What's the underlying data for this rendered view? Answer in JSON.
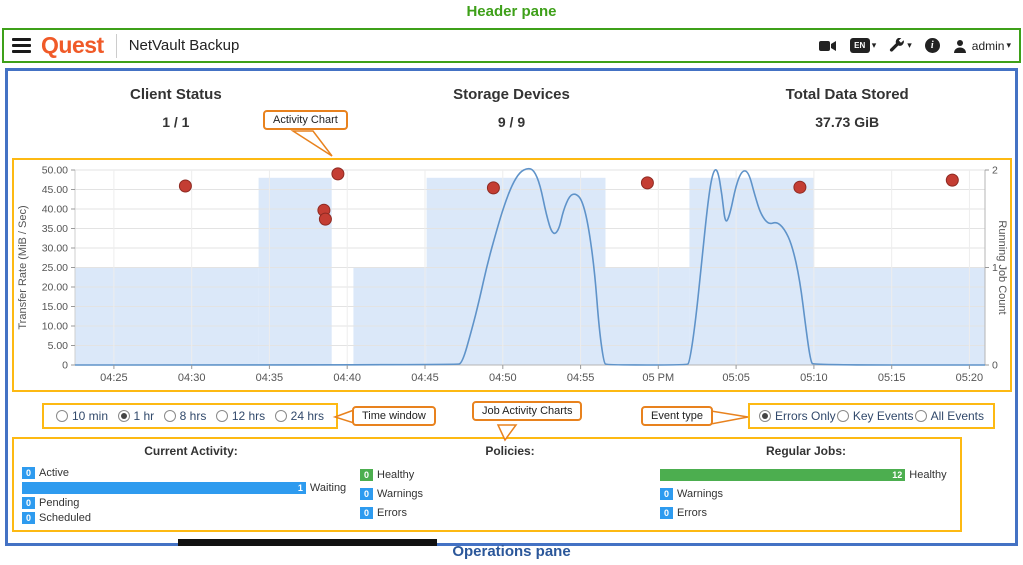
{
  "annotations": {
    "header_pane_label": "Header pane",
    "operations_pane_label": "Operations pane",
    "callout_activity_chart": "Activity Chart",
    "callout_time_window": "Time window",
    "callout_job_activity_charts": "Job Activity Charts",
    "callout_event_type": "Event type"
  },
  "header": {
    "brand": "Quest",
    "app_title": "NetVault Backup",
    "language_badge": "EN",
    "user_name": "admin"
  },
  "icons": {
    "menu": "hamburger",
    "video": "camera-shape",
    "language": "EN-badge",
    "tools": "wrench-shape",
    "info_glyph": "i",
    "user": "person-shape",
    "caret": "▾"
  },
  "summary_tiles": [
    {
      "label": "Client Status",
      "value": "1 / 1"
    },
    {
      "label": "Storage Devices",
      "value": "9 / 9"
    },
    {
      "label": "Total Data Stored",
      "value": "37.73 GiB"
    }
  ],
  "time_window": {
    "options": [
      "10 min",
      "1 hr",
      "8 hrs",
      "12 hrs",
      "24 hrs"
    ],
    "selected": "1 hr"
  },
  "event_type": {
    "options": [
      "Errors Only",
      "Key Events",
      "All Events"
    ],
    "selected": "Errors Only"
  },
  "chart_data": {
    "type": "line",
    "description": "Activity chart: running job count line (right axis), error event dots (left axis), shaded transfer-rate bands (left axis)",
    "x_axis": {
      "tick_labels": [
        "04:25",
        "04:30",
        "04:35",
        "04:40",
        "04:45",
        "04:50",
        "04:55",
        "05 PM",
        "05:05",
        "05:10",
        "05:15",
        "05:20"
      ],
      "tick_minutes": [
        25,
        30,
        35,
        40,
        45,
        50,
        55,
        60,
        65,
        70,
        75,
        80
      ],
      "domain_minutes": [
        22.5,
        81
      ]
    },
    "y_left": {
      "label": "Transfer Rate (MiB / Sec)",
      "tick_labels": [
        "50.00",
        "45.00",
        "40.00",
        "35.00",
        "30.00",
        "25.00",
        "20.00",
        "15.00",
        "10.00",
        "5.00",
        "0"
      ],
      "tick_values": [
        50,
        45,
        40,
        35,
        30,
        25,
        20,
        15,
        10,
        5,
        0
      ],
      "range": [
        0,
        50
      ]
    },
    "y_right": {
      "label": "Running Job Count",
      "tick_labels": [
        "2",
        "1",
        "0"
      ],
      "tick_values": [
        2,
        1,
        0
      ],
      "range": [
        0,
        2
      ]
    },
    "series": [
      {
        "name": "transfer-rate-bands",
        "type": "area",
        "axis": "left",
        "color": "#dbe8f9",
        "steps": [
          [
            22.5,
            34.3,
            25
          ],
          [
            34.3,
            39,
            48
          ],
          [
            40.4,
            45.1,
            25
          ],
          [
            45.1,
            56.6,
            48
          ],
          [
            56.6,
            62,
            25
          ],
          [
            62,
            70,
            48
          ],
          [
            70,
            81,
            25
          ]
        ]
      },
      {
        "name": "running-job-count",
        "type": "line",
        "axis": "right",
        "color": "#5f93c9",
        "points": [
          [
            22.5,
            0
          ],
          [
            47.0,
            0
          ],
          [
            47.4,
            0.02
          ],
          [
            48.0,
            0.36
          ],
          [
            48.5,
            0.67
          ],
          [
            49.0,
            1.03
          ],
          [
            49.6,
            1.38
          ],
          [
            50.1,
            1.64
          ],
          [
            50.6,
            1.85
          ],
          [
            51.1,
            1.98
          ],
          [
            51.6,
            2.02
          ],
          [
            52.0,
            2.0
          ],
          [
            52.4,
            1.85
          ],
          [
            52.8,
            1.54
          ],
          [
            53.2,
            1.33
          ],
          [
            53.6,
            1.38
          ],
          [
            53.9,
            1.59
          ],
          [
            54.3,
            1.74
          ],
          [
            54.7,
            1.76
          ],
          [
            55.1,
            1.69
          ],
          [
            55.5,
            1.44
          ],
          [
            55.9,
            0.97
          ],
          [
            56.2,
            0.36
          ],
          [
            56.5,
            0.02
          ],
          [
            56.7,
            0
          ],
          [
            61.8,
            0
          ],
          [
            62.0,
            0.02
          ],
          [
            62.4,
            0.46
          ],
          [
            62.8,
            1.08
          ],
          [
            63.2,
            1.69
          ],
          [
            63.5,
            1.98
          ],
          [
            63.8,
            2.02
          ],
          [
            64.1,
            1.74
          ],
          [
            64.3,
            1.44
          ],
          [
            64.6,
            1.54
          ],
          [
            65.0,
            1.85
          ],
          [
            65.4,
            2.0
          ],
          [
            65.8,
            1.98
          ],
          [
            66.2,
            1.74
          ],
          [
            66.6,
            1.54
          ],
          [
            67.1,
            1.44
          ],
          [
            67.6,
            1.47
          ],
          [
            68.1,
            1.4
          ],
          [
            68.6,
            1.23
          ],
          [
            69.1,
            0.87
          ],
          [
            69.5,
            0.36
          ],
          [
            69.8,
            0.03
          ],
          [
            70.0,
            0
          ],
          [
            81,
            0
          ]
        ]
      },
      {
        "name": "error-events",
        "type": "scatter",
        "axis": "left",
        "color": "#c43d33",
        "edge": "#8e2a22",
        "points": [
          [
            29.6,
            45.9
          ],
          [
            39.4,
            49.0
          ],
          [
            38.5,
            39.7
          ],
          [
            38.6,
            37.4
          ],
          [
            49.4,
            45.4
          ],
          [
            59.3,
            46.7
          ],
          [
            69.1,
            45.6
          ],
          [
            78.9,
            47.4
          ]
        ]
      }
    ]
  },
  "operations": {
    "palette": {
      "blue": "#2e9bef",
      "green": "#4cae4f"
    },
    "groups": [
      {
        "title": "Current Activity:",
        "rows": [
          {
            "label": "Active",
            "count": 0,
            "color": "blue",
            "size": "min"
          },
          {
            "label": "Waiting",
            "count": 1,
            "color": "blue",
            "size": "full"
          },
          {
            "label": "Pending",
            "count": 0,
            "color": "blue",
            "size": "min"
          },
          {
            "label": "Scheduled",
            "count": 0,
            "color": "blue",
            "size": "min"
          }
        ]
      },
      {
        "title": "Policies:",
        "rows": [
          {
            "label": "Healthy",
            "count": 0,
            "color": "green",
            "size": "min"
          },
          {
            "label": "Warnings",
            "count": 0,
            "color": "blue",
            "size": "min"
          },
          {
            "label": "Errors",
            "count": 0,
            "color": "blue",
            "size": "min"
          }
        ]
      },
      {
        "title": "Regular Jobs:",
        "rows": [
          {
            "label": "Healthy",
            "count": 12,
            "color": "green",
            "size": "full"
          },
          {
            "label": "Warnings",
            "count": 0,
            "color": "blue",
            "size": "min"
          },
          {
            "label": "Errors",
            "count": 0,
            "color": "blue",
            "size": "min"
          }
        ]
      }
    ]
  }
}
